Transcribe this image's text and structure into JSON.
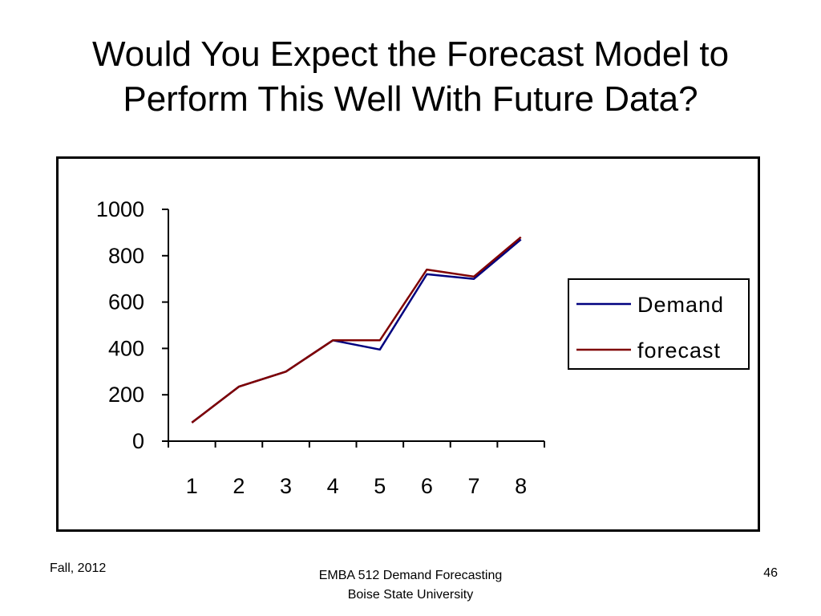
{
  "slide": {
    "title_line1": "Would You Expect the Forecast Model to",
    "title_line2": "Perform This Well With Future Data?"
  },
  "footer": {
    "left": "Fall, 2012",
    "center_line1": "EMBA 512 Demand Forecasting",
    "center_line2": "Boise State University",
    "page_number": "46"
  },
  "chart_data": {
    "type": "line",
    "title": "",
    "xlabel": "",
    "ylabel": "",
    "categories": [
      "1",
      "2",
      "3",
      "4",
      "5",
      "6",
      "7",
      "8"
    ],
    "ylim": [
      0,
      1000
    ],
    "yticks": [
      0,
      200,
      400,
      600,
      800,
      1000
    ],
    "grid": false,
    "legend_position": "right",
    "series": [
      {
        "name": "Demand",
        "color": "#00007f",
        "values": [
          80,
          235,
          300,
          435,
          395,
          720,
          700,
          870
        ]
      },
      {
        "name": "forecast",
        "color": "#7f0000",
        "values": [
          80,
          235,
          300,
          435,
          435,
          740,
          710,
          880
        ]
      }
    ]
  }
}
